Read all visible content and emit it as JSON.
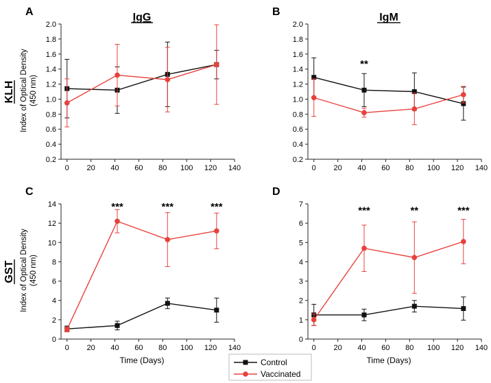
{
  "column_titles": [
    "IgG",
    "IgM"
  ],
  "row_labels": [
    "KLH",
    "GST"
  ],
  "y_axis_label_line1": "Index of Optical Density",
  "y_axis_label_line2": "(450 nm)",
  "x_axis_label": "Time (Days)",
  "legend": {
    "control": "Control",
    "vaccinated": "Vaccinated"
  },
  "colors": {
    "control": "#111111",
    "vaccinated": "#e8413c"
  },
  "chart_data": [
    {
      "panel": "A",
      "type": "line",
      "title": "IgG",
      "row": "KLH",
      "xlabel": "",
      "ylabel": "Index of Optical Density (450 nm)",
      "xlim": [
        -5,
        140
      ],
      "ylim": [
        0.2,
        2.0
      ],
      "xticks": [
        0,
        20,
        40,
        60,
        80,
        100,
        120,
        140
      ],
      "yticks": [
        0.2,
        0.4,
        0.6,
        0.8,
        1.0,
        1.2,
        1.4,
        1.6,
        1.8,
        2.0
      ],
      "ytick_labels": [
        "0.2",
        "0.4",
        "0.6",
        "0.8",
        "1.0",
        "1.2",
        "1.4",
        "1.6",
        "1.8",
        "2.0"
      ],
      "x": [
        0,
        42,
        84,
        125
      ],
      "series": [
        {
          "name": "Control",
          "values": [
            1.14,
            1.12,
            1.33,
            1.46
          ],
          "errors": [
            0.39,
            0.31,
            0.43,
            0.19
          ]
        },
        {
          "name": "Vaccinated",
          "values": [
            0.95,
            1.32,
            1.26,
            1.46
          ],
          "errors": [
            0.32,
            0.41,
            0.43,
            0.53
          ]
        }
      ],
      "annotations": []
    },
    {
      "panel": "B",
      "type": "line",
      "title": "IgM",
      "row": "KLH",
      "xlabel": "",
      "ylabel": "",
      "xlim": [
        -5,
        140
      ],
      "ylim": [
        0.2,
        2.0
      ],
      "xticks": [
        0,
        20,
        40,
        60,
        80,
        100,
        120,
        140
      ],
      "yticks": [
        0.2,
        0.4,
        0.6,
        0.8,
        1.0,
        1.2,
        1.4,
        1.6,
        1.8,
        2.0
      ],
      "ytick_labels": [
        "0.2",
        "0.4",
        "0.6",
        "0.8",
        "1.0",
        "1.2",
        "1.4",
        "1.6",
        "1.8",
        "2.0"
      ],
      "x": [
        0,
        42,
        84,
        125
      ],
      "series": [
        {
          "name": "Control",
          "values": [
            1.29,
            1.12,
            1.1,
            0.94
          ],
          "errors": [
            0.26,
            0.22,
            0.25,
            0.22
          ]
        },
        {
          "name": "Vaccinated",
          "values": [
            1.02,
            0.82,
            0.87,
            1.06
          ],
          "errors": [
            0.25,
            0.06,
            0.21,
            0.11
          ]
        }
      ],
      "annotations": [
        {
          "x": 42,
          "y": 1.48,
          "text": "**"
        }
      ]
    },
    {
      "panel": "C",
      "type": "line",
      "title": "",
      "row": "GST",
      "xlabel": "Time (Days)",
      "ylabel": "Index of Optical Density (450 nm)",
      "xlim": [
        -5,
        140
      ],
      "ylim": [
        0,
        14
      ],
      "xticks": [
        0,
        20,
        40,
        60,
        80,
        100,
        120,
        140
      ],
      "yticks": [
        0,
        2,
        4,
        6,
        8,
        10,
        12,
        14
      ],
      "ytick_labels": [
        "0",
        "2",
        "4",
        "6",
        "8",
        "10",
        "12",
        "14"
      ],
      "x": [
        0,
        42,
        84,
        125
      ],
      "series": [
        {
          "name": "Control",
          "values": [
            1.05,
            1.4,
            3.7,
            3.0
          ],
          "errors": [
            0.3,
            0.45,
            0.55,
            1.25
          ]
        },
        {
          "name": "Vaccinated",
          "values": [
            1.0,
            12.2,
            10.3,
            11.2
          ],
          "errors": [
            0.25,
            1.2,
            2.8,
            1.85
          ]
        }
      ],
      "annotations": [
        {
          "x": 42,
          "y": 13.8,
          "text": "***"
        },
        {
          "x": 84,
          "y": 13.8,
          "text": "***"
        },
        {
          "x": 125,
          "y": 13.8,
          "text": "***"
        }
      ]
    },
    {
      "panel": "D",
      "type": "line",
      "title": "",
      "row": "GST",
      "xlabel": "Time (Days)",
      "ylabel": "",
      "xlim": [
        -5,
        140
      ],
      "ylim": [
        0,
        7
      ],
      "xticks": [
        0,
        20,
        40,
        60,
        80,
        100,
        120,
        140
      ],
      "yticks": [
        0,
        1,
        2,
        3,
        4,
        5,
        6,
        7
      ],
      "ytick_labels": [
        "0",
        "1",
        "2",
        "3",
        "4",
        "5",
        "6",
        "7"
      ],
      "x": [
        0,
        42,
        84,
        125
      ],
      "series": [
        {
          "name": "Control",
          "values": [
            1.25,
            1.25,
            1.7,
            1.58
          ],
          "errors": [
            0.55,
            0.3,
            0.3,
            0.6
          ]
        },
        {
          "name": "Vaccinated",
          "values": [
            1.0,
            4.7,
            4.22,
            5.05
          ],
          "errors": [
            0.3,
            1.2,
            1.85,
            1.15
          ]
        }
      ],
      "annotations": [
        {
          "x": 42,
          "y": 6.7,
          "text": "***"
        },
        {
          "x": 84,
          "y": 6.7,
          "text": "**"
        },
        {
          "x": 125,
          "y": 6.7,
          "text": "***"
        }
      ]
    }
  ]
}
